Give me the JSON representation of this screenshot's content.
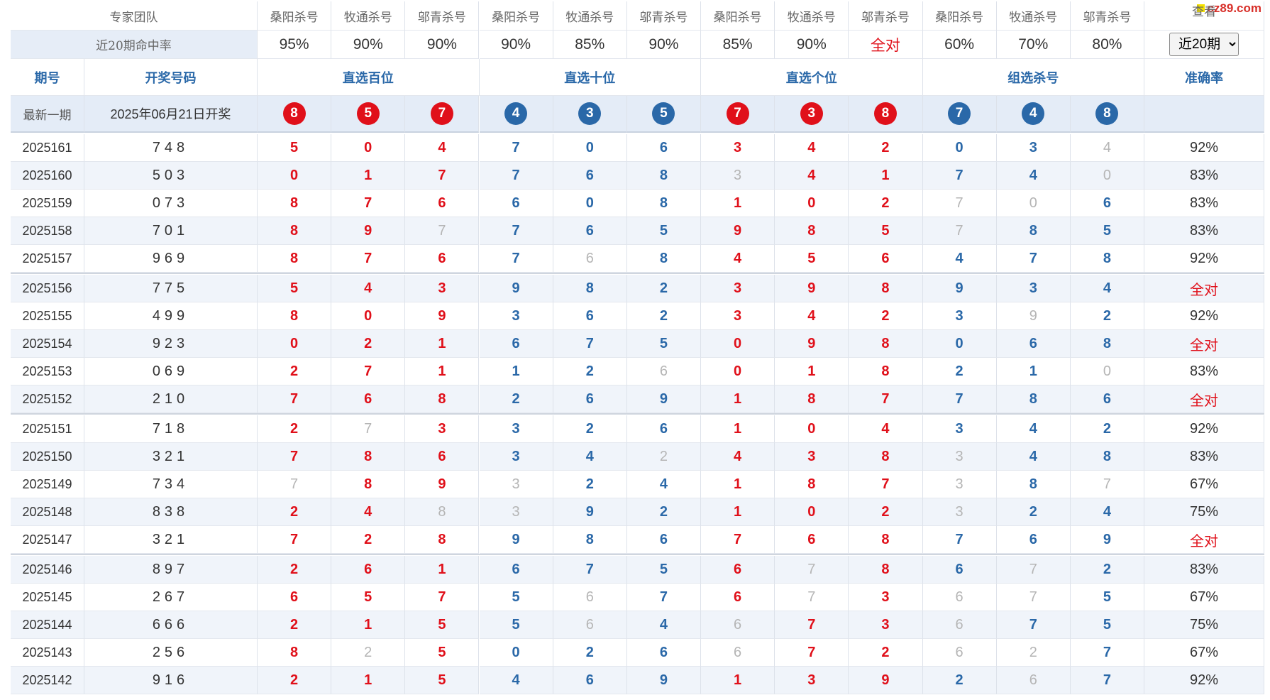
{
  "watermark": "cz89.com",
  "header": {
    "team_label": "专家团队",
    "experts": [
      "桑阳杀号",
      "牧通杀号",
      "邬青杀号",
      "桑阳杀号",
      "牧通杀号",
      "邬青杀号",
      "桑阳杀号",
      "牧通杀号",
      "邬青杀号",
      "桑阳杀号",
      "牧通杀号",
      "邬青杀号"
    ],
    "view_label": "查看"
  },
  "rates": {
    "label": "近20期命中率",
    "values": [
      "95%",
      "90%",
      "90%",
      "90%",
      "85%",
      "90%",
      "85%",
      "90%",
      "全对",
      "60%",
      "70%",
      "80%"
    ],
    "select": "近20期"
  },
  "columns": {
    "issue": "期号",
    "draw": "开奖号码",
    "groups": [
      "直选百位",
      "直选十位",
      "直选个位",
      "组选杀号"
    ],
    "accuracy": "准确率"
  },
  "latest": {
    "label": "最新一期",
    "date": "2025年06月21日开奖",
    "balls": [
      8,
      5,
      7,
      4,
      3,
      5,
      7,
      3,
      8,
      7,
      4,
      8
    ]
  },
  "rows": [
    {
      "issue": "2025161",
      "draw": "748",
      "kills": [
        5,
        0,
        4,
        7,
        0,
        6,
        3,
        4,
        2,
        0,
        3,
        4
      ],
      "accuracy": "92%"
    },
    {
      "issue": "2025160",
      "draw": "503",
      "kills": [
        0,
        1,
        7,
        7,
        6,
        8,
        3,
        4,
        1,
        7,
        4,
        0
      ],
      "accuracy": "83%"
    },
    {
      "issue": "2025159",
      "draw": "073",
      "kills": [
        8,
        7,
        6,
        6,
        0,
        8,
        1,
        0,
        2,
        7,
        0,
        6
      ],
      "accuracy": "83%"
    },
    {
      "issue": "2025158",
      "draw": "701",
      "kills": [
        8,
        9,
        7,
        7,
        6,
        5,
        9,
        8,
        5,
        7,
        8,
        5
      ],
      "accuracy": "83%"
    },
    {
      "issue": "2025157",
      "draw": "969",
      "kills": [
        8,
        7,
        6,
        7,
        6,
        8,
        4,
        5,
        6,
        4,
        7,
        8
      ],
      "accuracy": "92%"
    },
    {
      "issue": "2025156",
      "draw": "775",
      "kills": [
        5,
        4,
        3,
        9,
        8,
        2,
        3,
        9,
        8,
        9,
        3,
        4
      ],
      "accuracy": "全对"
    },
    {
      "issue": "2025155",
      "draw": "499",
      "kills": [
        8,
        0,
        9,
        3,
        6,
        2,
        3,
        4,
        2,
        3,
        9,
        2
      ],
      "accuracy": "92%"
    },
    {
      "issue": "2025154",
      "draw": "923",
      "kills": [
        0,
        2,
        1,
        6,
        7,
        5,
        0,
        9,
        8,
        0,
        6,
        8
      ],
      "accuracy": "全对"
    },
    {
      "issue": "2025153",
      "draw": "069",
      "kills": [
        2,
        7,
        1,
        1,
        2,
        6,
        0,
        1,
        8,
        2,
        1,
        0
      ],
      "accuracy": "83%"
    },
    {
      "issue": "2025152",
      "draw": "210",
      "kills": [
        7,
        6,
        8,
        2,
        6,
        9,
        1,
        8,
        7,
        7,
        8,
        6
      ],
      "accuracy": "全对"
    },
    {
      "issue": "2025151",
      "draw": "718",
      "kills": [
        2,
        7,
        3,
        3,
        2,
        6,
        1,
        0,
        4,
        3,
        4,
        2
      ],
      "accuracy": "92%"
    },
    {
      "issue": "2025150",
      "draw": "321",
      "kills": [
        7,
        8,
        6,
        3,
        4,
        2,
        4,
        3,
        8,
        3,
        4,
        8
      ],
      "accuracy": "83%"
    },
    {
      "issue": "2025149",
      "draw": "734",
      "kills": [
        7,
        8,
        9,
        3,
        2,
        4,
        1,
        8,
        7,
        3,
        8,
        7
      ],
      "accuracy": "67%"
    },
    {
      "issue": "2025148",
      "draw": "838",
      "kills": [
        2,
        4,
        8,
        3,
        9,
        2,
        1,
        0,
        2,
        3,
        2,
        4
      ],
      "accuracy": "75%"
    },
    {
      "issue": "2025147",
      "draw": "321",
      "kills": [
        7,
        2,
        8,
        9,
        8,
        6,
        7,
        6,
        8,
        7,
        6,
        9
      ],
      "accuracy": "全对"
    },
    {
      "issue": "2025146",
      "draw": "897",
      "kills": [
        2,
        6,
        1,
        6,
        7,
        5,
        6,
        7,
        8,
        6,
        7,
        2
      ],
      "accuracy": "83%"
    },
    {
      "issue": "2025145",
      "draw": "267",
      "kills": [
        6,
        5,
        7,
        5,
        6,
        7,
        6,
        7,
        3,
        6,
        7,
        5
      ],
      "accuracy": "67%"
    },
    {
      "issue": "2025144",
      "draw": "666",
      "kills": [
        2,
        1,
        5,
        5,
        6,
        4,
        6,
        7,
        3,
        6,
        7,
        5
      ],
      "accuracy": "75%"
    },
    {
      "issue": "2025143",
      "draw": "256",
      "kills": [
        8,
        2,
        5,
        0,
        2,
        6,
        6,
        7,
        2,
        6,
        2,
        7
      ],
      "accuracy": "67%"
    },
    {
      "issue": "2025142",
      "draw": "916",
      "kills": [
        2,
        1,
        5,
        4,
        6,
        9,
        1,
        3,
        9,
        2,
        6,
        7
      ],
      "accuracy": "92%"
    }
  ]
}
